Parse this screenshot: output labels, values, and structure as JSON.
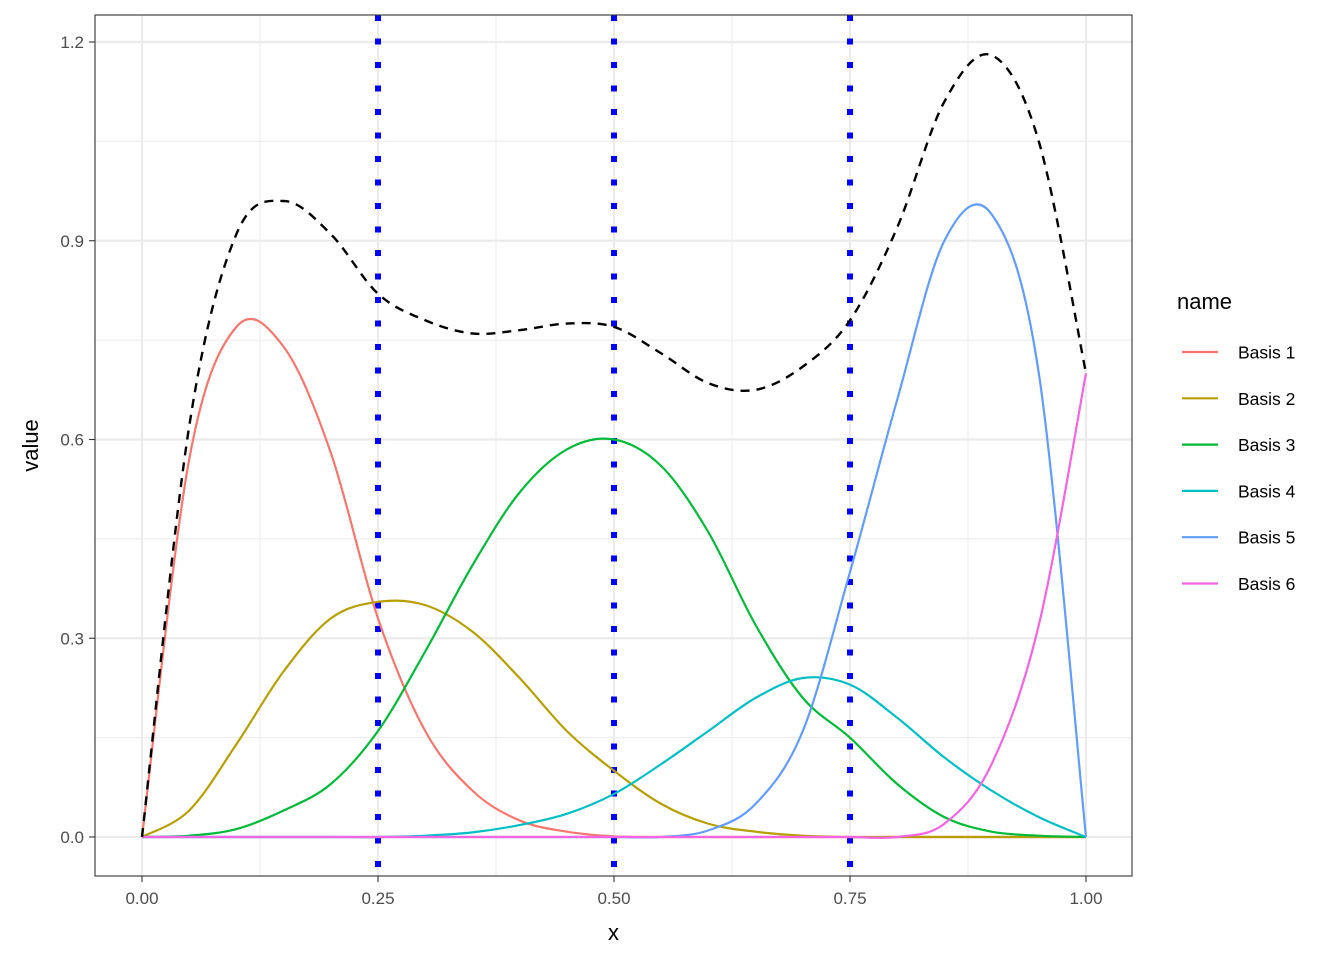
{
  "chart_data": {
    "type": "line",
    "xlabel": "x",
    "ylabel": "value",
    "xlim": [
      0,
      1
    ],
    "ylim": [
      0,
      1.2
    ],
    "x_ticks": [
      0,
      0.25,
      0.5,
      0.75,
      1
    ],
    "x_tick_labels": [
      "0.00",
      "0.25",
      "0.50",
      "0.75",
      "1.00"
    ],
    "y_ticks": [
      0,
      0.3,
      0.6,
      0.9,
      1.2
    ],
    "y_tick_labels": [
      "0.0",
      "0.3",
      "0.6",
      "0.9",
      "1.2"
    ],
    "grid": true,
    "legend": {
      "title": "name",
      "position": "right"
    },
    "x": [
      0,
      0.05,
      0.1,
      0.15,
      0.2,
      0.25,
      0.3,
      0.35,
      0.4,
      0.45,
      0.5,
      0.55,
      0.6,
      0.65,
      0.7,
      0.75,
      0.8,
      0.85,
      0.9,
      0.95,
      1.0
    ],
    "series": [
      {
        "name": "Basis 1",
        "color": "#F8766D",
        "values": [
          0.0,
          0.57,
          0.77,
          0.74,
          0.58,
          0.33,
          0.16,
          0.07,
          0.025,
          0.008,
          0.001,
          0.0,
          0.0,
          0.0,
          0.0,
          0.0,
          0.0,
          0.0,
          0.0,
          0.0,
          0.0
        ]
      },
      {
        "name": "Basis 2",
        "color": "#B79F00",
        "values": [
          0.0,
          0.04,
          0.14,
          0.25,
          0.33,
          0.355,
          0.35,
          0.31,
          0.24,
          0.16,
          0.1,
          0.05,
          0.02,
          0.008,
          0.002,
          0.0,
          0.0,
          0.0,
          0.0,
          0.0,
          0.0
        ]
      },
      {
        "name": "Basis 3",
        "color": "#00BA38",
        "values": [
          0.0,
          0.002,
          0.012,
          0.04,
          0.08,
          0.16,
          0.28,
          0.41,
          0.52,
          0.585,
          0.6,
          0.56,
          0.46,
          0.32,
          0.21,
          0.15,
          0.08,
          0.03,
          0.008,
          0.002,
          0.0
        ]
      },
      {
        "name": "Basis 4",
        "color": "#00BFC4",
        "values": [
          0.0,
          0.0,
          0.0,
          0.0,
          0.0,
          0.0,
          0.002,
          0.007,
          0.018,
          0.035,
          0.065,
          0.11,
          0.16,
          0.21,
          0.24,
          0.23,
          0.18,
          0.12,
          0.07,
          0.03,
          0.0
        ]
      },
      {
        "name": "Basis 5",
        "color": "#619CFF",
        "values": [
          0.0,
          0.0,
          0.0,
          0.0,
          0.0,
          0.0,
          0.0,
          0.0,
          0.0,
          0.0,
          0.0,
          0.0,
          0.01,
          0.05,
          0.16,
          0.4,
          0.66,
          0.9,
          0.94,
          0.7,
          0.0
        ]
      },
      {
        "name": "Basis 6",
        "color": "#F564E3",
        "values": [
          0.0,
          0.0,
          0.0,
          0.0,
          0.0,
          0.0,
          0.0,
          0.0,
          0.0,
          0.0,
          0.0,
          0.0,
          0.0,
          0.0,
          0.0,
          0.0,
          0.0,
          0.02,
          0.11,
          0.32,
          0.7
        ]
      },
      {
        "color": "#000000",
        "dashed": true,
        "values": [
          0.0,
          0.62,
          0.91,
          0.96,
          0.91,
          0.82,
          0.78,
          0.76,
          0.765,
          0.775,
          0.77,
          0.73,
          0.685,
          0.675,
          0.71,
          0.78,
          0.92,
          1.11,
          1.18,
          1.05,
          0.7
        ]
      }
    ],
    "knots": {
      "x": [
        0.25,
        0.5,
        0.75
      ],
      "color": "#0000FF",
      "style": "dotted"
    }
  }
}
